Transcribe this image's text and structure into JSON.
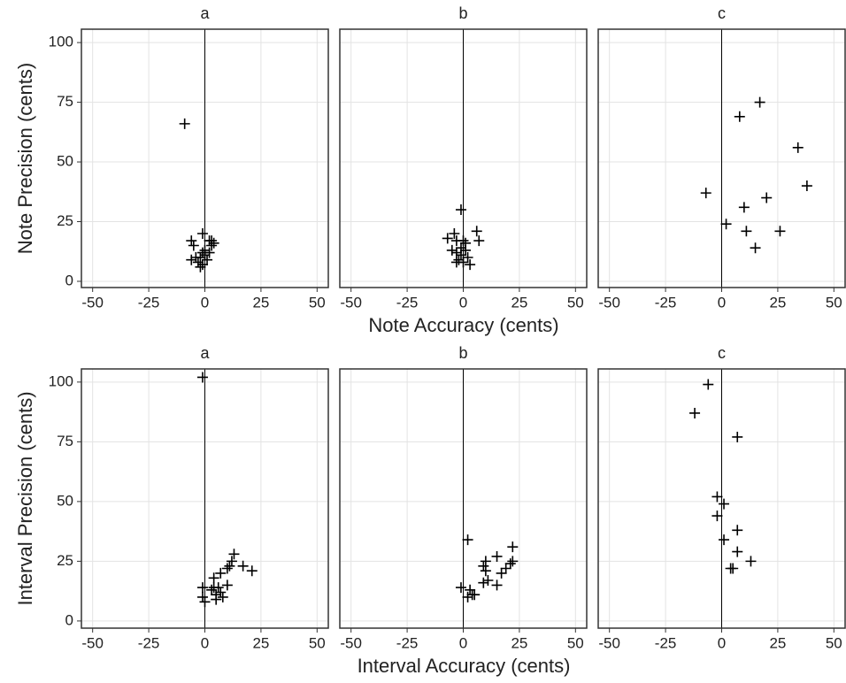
{
  "chart_data": [
    {
      "type": "scatter",
      "xlabel": "Note Accuracy (cents)",
      "ylabel": "Note Precision (cents)",
      "xlim": [
        -55,
        55
      ],
      "ylim": [
        -2.6,
        105.6
      ],
      "xticks": [
        -50,
        -25,
        0,
        25,
        50
      ],
      "yticks": [
        0,
        25,
        50,
        75,
        100
      ],
      "vline": 0,
      "grid": true,
      "color": "#000000",
      "facets": [
        {
          "title": "a",
          "x": [
            -9,
            -1,
            2,
            3,
            4,
            -6,
            -5,
            -1,
            0,
            -2,
            -4,
            -6,
            -3,
            -1,
            1,
            2,
            0,
            -2,
            3
          ],
          "y": [
            66,
            20,
            17,
            15,
            16,
            17,
            15,
            12,
            11,
            10,
            10,
            9,
            8,
            7,
            9,
            12,
            13,
            6,
            17
          ]
        },
        {
          "title": "b",
          "x": [
            -1,
            6,
            7,
            -4,
            -7,
            -3,
            0,
            1,
            -5,
            -3,
            -1,
            2,
            -2,
            -3,
            0,
            3,
            1,
            -1
          ],
          "y": [
            30,
            21,
            17,
            20,
            18,
            17,
            17,
            16,
            13,
            12,
            11,
            10,
            9,
            8,
            8,
            7,
            13,
            14
          ]
        },
        {
          "title": "c",
          "x": [
            17,
            8,
            34,
            38,
            -7,
            20,
            10,
            2,
            11,
            26,
            15
          ],
          "y": [
            75,
            69,
            56,
            40,
            37,
            35,
            31,
            24,
            21,
            21,
            14
          ]
        }
      ]
    },
    {
      "type": "scatter",
      "xlabel": "Interval Accuracy (cents)",
      "ylabel": "Interval Precision (cents)",
      "xlim": [
        -55,
        55
      ],
      "ylim": [
        -3,
        105.5
      ],
      "xticks": [
        -50,
        -25,
        0,
        25,
        50
      ],
      "yticks": [
        0,
        25,
        50,
        75,
        100
      ],
      "vline": 0,
      "grid": true,
      "color": "#000000",
      "facets": [
        {
          "title": "a",
          "x": [
            -1,
            -1,
            -1,
            0,
            4,
            3,
            6,
            5,
            7,
            8,
            5,
            10,
            12,
            13,
            11,
            17,
            21,
            10,
            4,
            7
          ],
          "y": [
            102,
            14,
            10,
            8,
            18,
            13,
            14,
            11,
            12,
            10,
            9,
            22,
            25,
            28,
            23,
            23,
            21,
            15,
            14,
            20
          ]
        },
        {
          "title": "b",
          "x": [
            2,
            22,
            15,
            22,
            10,
            9,
            19,
            17,
            11,
            9,
            15,
            -1,
            3,
            4,
            2,
            5,
            10,
            21
          ],
          "y": [
            34,
            31,
            27,
            25,
            25,
            23,
            22,
            20,
            17,
            16,
            15,
            14,
            13,
            11,
            10,
            11,
            21,
            24
          ]
        },
        {
          "title": "c",
          "x": [
            -6,
            -12,
            7,
            -2,
            1,
            -2,
            7,
            1,
            7,
            13,
            4,
            5
          ],
          "y": [
            99,
            87,
            77,
            52,
            49,
            44,
            38,
            34,
            29,
            25,
            22,
            22
          ]
        }
      ]
    }
  ]
}
